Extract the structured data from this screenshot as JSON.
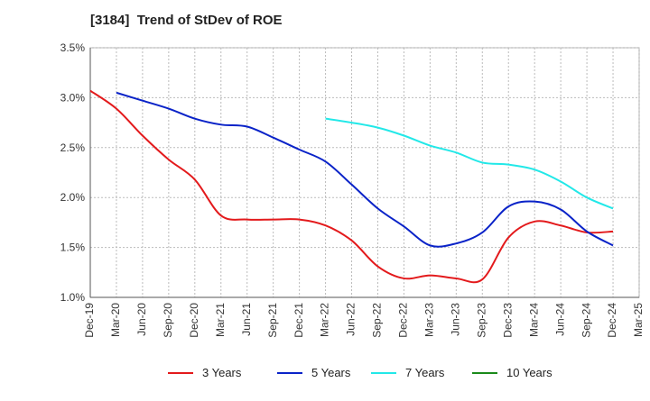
{
  "chart_data": {
    "type": "line",
    "title": "[3184]  Trend of StDev of ROE",
    "xlabel": "",
    "ylabel": "",
    "y_unit": "%",
    "ylim": [
      1.0,
      3.5
    ],
    "yticks": [
      "1.0%",
      "1.5%",
      "2.0%",
      "2.5%",
      "3.0%",
      "3.5%"
    ],
    "ytick_values": [
      1.0,
      1.5,
      2.0,
      2.5,
      3.0,
      3.5
    ],
    "categories": [
      "Dec-19",
      "Mar-20",
      "Jun-20",
      "Sep-20",
      "Dec-20",
      "Mar-21",
      "Jun-21",
      "Sep-21",
      "Dec-21",
      "Mar-22",
      "Jun-22",
      "Sep-22",
      "Dec-22",
      "Mar-23",
      "Jun-23",
      "Sep-23",
      "Dec-23",
      "Mar-24",
      "Jun-24",
      "Sep-24",
      "Dec-24",
      "Mar-25"
    ],
    "grid": true,
    "legend_position": "bottom",
    "series": [
      {
        "name": "3 Years",
        "color": "#e31a1c",
        "values": [
          3.07,
          2.89,
          2.62,
          2.38,
          2.18,
          1.82,
          1.78,
          1.78,
          1.78,
          1.72,
          1.57,
          1.31,
          1.19,
          1.22,
          1.19,
          1.18,
          1.6,
          1.76,
          1.72,
          1.65,
          1.66,
          null
        ]
      },
      {
        "name": "5 Years",
        "color": "#0a23c8",
        "values": [
          null,
          3.05,
          2.97,
          2.89,
          2.79,
          2.73,
          2.71,
          2.6,
          2.48,
          2.36,
          2.13,
          1.89,
          1.71,
          1.52,
          1.54,
          1.65,
          1.91,
          1.96,
          1.88,
          1.66,
          1.52,
          null
        ]
      },
      {
        "name": "7 Years",
        "color": "#22e8e8",
        "values": [
          null,
          null,
          null,
          null,
          null,
          null,
          null,
          null,
          null,
          2.79,
          2.75,
          2.7,
          2.62,
          2.52,
          2.45,
          2.35,
          2.33,
          2.28,
          2.16,
          2.0,
          1.89,
          null
        ]
      },
      {
        "name": "10 Years",
        "color": "#1a8a1a",
        "values": [
          null,
          null,
          null,
          null,
          null,
          null,
          null,
          null,
          null,
          null,
          null,
          null,
          null,
          null,
          null,
          null,
          null,
          null,
          null,
          null,
          null,
          null
        ]
      }
    ]
  }
}
